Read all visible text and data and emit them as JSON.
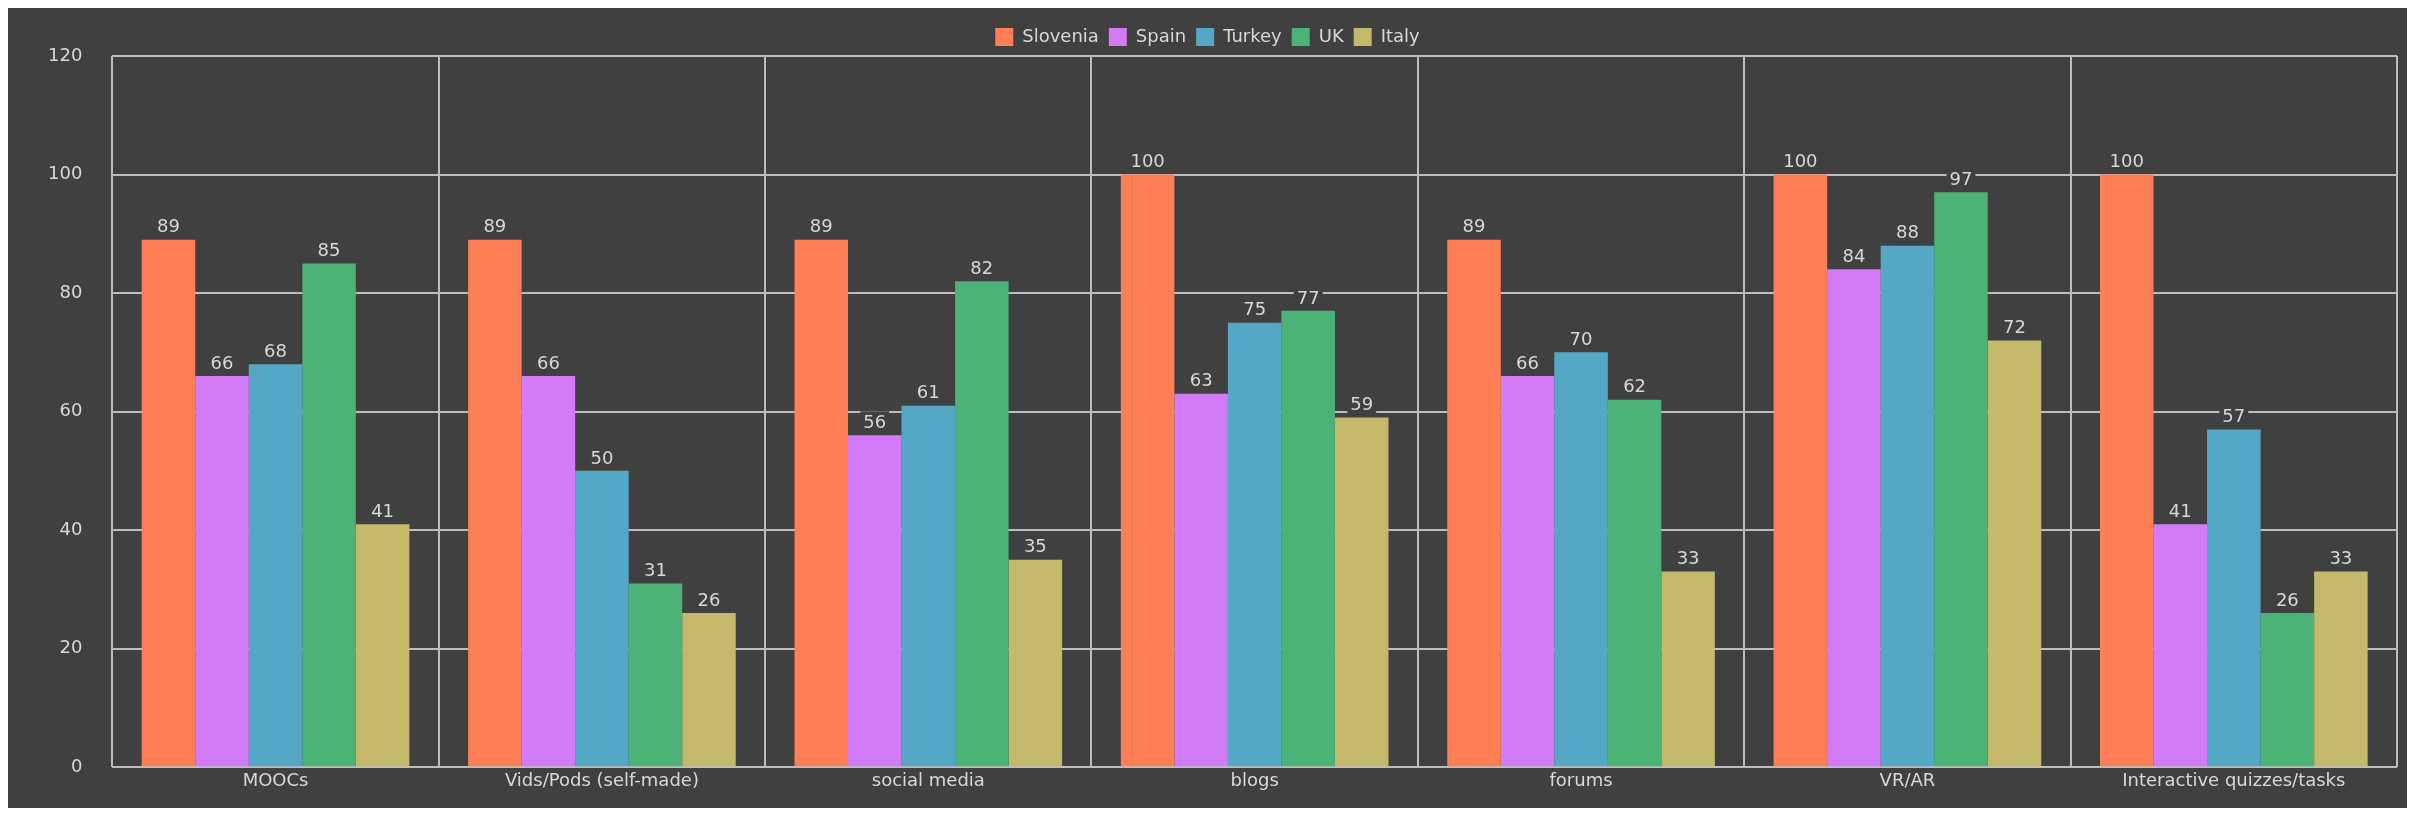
{
  "chart_data": {
    "type": "bar",
    "categories": [
      "MOOCs",
      "Vids/Pods (self-made)",
      "social media",
      "blogs",
      "forums",
      "VR/AR",
      "Interactive quizzes/tasks"
    ],
    "series": [
      {
        "name": "Slovenia",
        "color": "#fe7f55",
        "values": [
          89,
          89,
          89,
          100,
          89,
          100,
          100
        ]
      },
      {
        "name": "Spain",
        "color": "#d17cf6",
        "values": [
          66,
          66,
          56,
          63,
          66,
          84,
          41
        ]
      },
      {
        "name": "Turkey",
        "color": "#55a8c5",
        "values": [
          68,
          50,
          61,
          75,
          70,
          88,
          57
        ]
      },
      {
        "name": "UK",
        "color": "#4cb276",
        "values": [
          85,
          31,
          82,
          77,
          62,
          97,
          26
        ]
      },
      {
        "name": "Italy",
        "color": "#c4b86b",
        "values": [
          41,
          26,
          35,
          59,
          33,
          72,
          33
        ]
      }
    ],
    "ylim": [
      0,
      120
    ],
    "yticks": [
      0,
      20,
      40,
      60,
      80,
      100,
      120
    ],
    "grid": true,
    "legend": "top",
    "data_labels": true
  }
}
